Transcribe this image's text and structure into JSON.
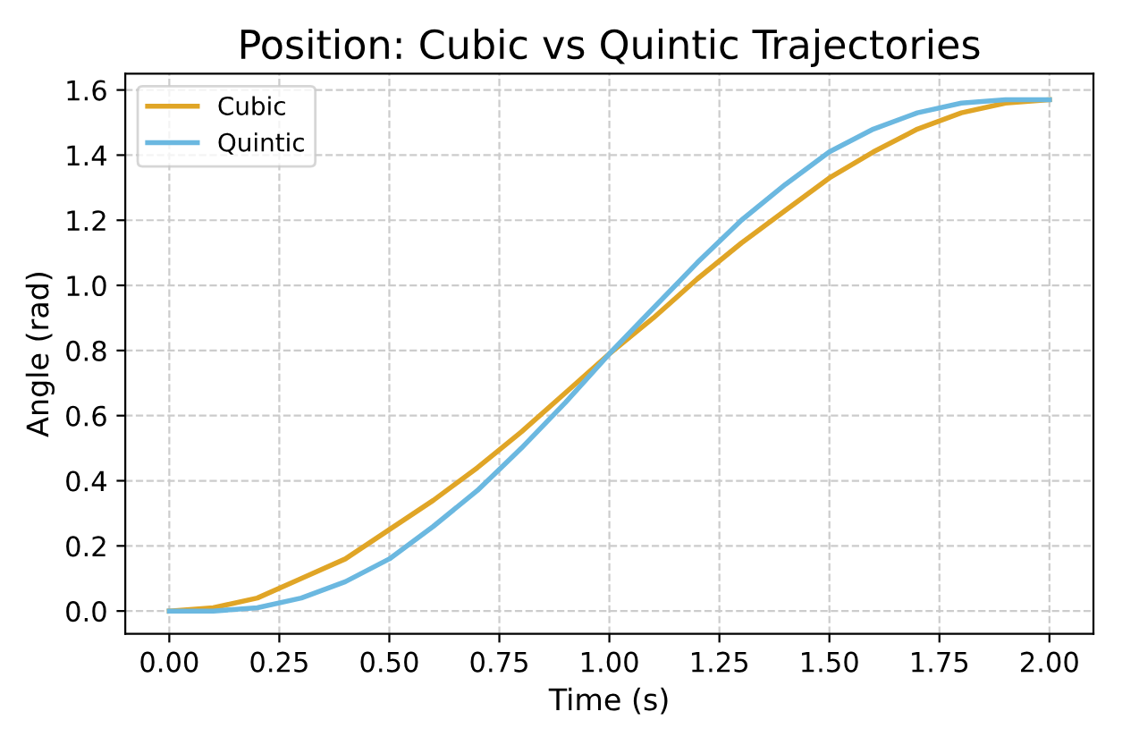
{
  "chart_data": {
    "type": "line",
    "title": "Position: Cubic vs Quintic Trajectories",
    "xlabel": "Time (s)",
    "ylabel": "Angle (rad)",
    "x": [
      0,
      0.1,
      0.2,
      0.3,
      0.4,
      0.5,
      0.6,
      0.7,
      0.8,
      0.9,
      1.0,
      1.1,
      1.2,
      1.3,
      1.4,
      1.5,
      1.6,
      1.7,
      1.8,
      1.9,
      2.0
    ],
    "series": [
      {
        "name": "Cubic",
        "color": "#e0a526",
        "values": [
          0,
          0.01,
          0.04,
          0.1,
          0.16,
          0.25,
          0.34,
          0.44,
          0.55,
          0.67,
          0.79,
          0.9,
          1.02,
          1.13,
          1.23,
          1.33,
          1.41,
          1.48,
          1.53,
          1.56,
          1.57
        ]
      },
      {
        "name": "Quintic",
        "color": "#6bb8e0",
        "values": [
          0,
          0.0,
          0.01,
          0.04,
          0.09,
          0.16,
          0.26,
          0.37,
          0.5,
          0.64,
          0.79,
          0.93,
          1.07,
          1.2,
          1.31,
          1.41,
          1.48,
          1.53,
          1.56,
          1.57,
          1.57
        ]
      }
    ],
    "xlim": [
      -0.1,
      2.1
    ],
    "ylim": [
      -0.07,
      1.65
    ],
    "xticks": [
      {
        "value": 0,
        "label": "0.00"
      },
      {
        "value": 0.25,
        "label": "0.25"
      },
      {
        "value": 0.5,
        "label": "0.50"
      },
      {
        "value": 0.75,
        "label": "0.75"
      },
      {
        "value": 1.0,
        "label": "1.00"
      },
      {
        "value": 1.25,
        "label": "1.25"
      },
      {
        "value": 1.5,
        "label": "1.50"
      },
      {
        "value": 1.75,
        "label": "1.75"
      },
      {
        "value": 2.0,
        "label": "2.00"
      }
    ],
    "yticks": [
      {
        "value": 0,
        "label": "0.0"
      },
      {
        "value": 0.2,
        "label": "0.2"
      },
      {
        "value": 0.4,
        "label": "0.4"
      },
      {
        "value": 0.6,
        "label": "0.6"
      },
      {
        "value": 0.8,
        "label": "0.8"
      },
      {
        "value": 1.0,
        "label": "1.0"
      },
      {
        "value": 1.2,
        "label": "1.2"
      },
      {
        "value": 1.4,
        "label": "1.4"
      },
      {
        "value": 1.6,
        "label": "1.6"
      }
    ],
    "grid": true,
    "legend": "top left",
    "line_style": "solid",
    "marker": "none"
  }
}
